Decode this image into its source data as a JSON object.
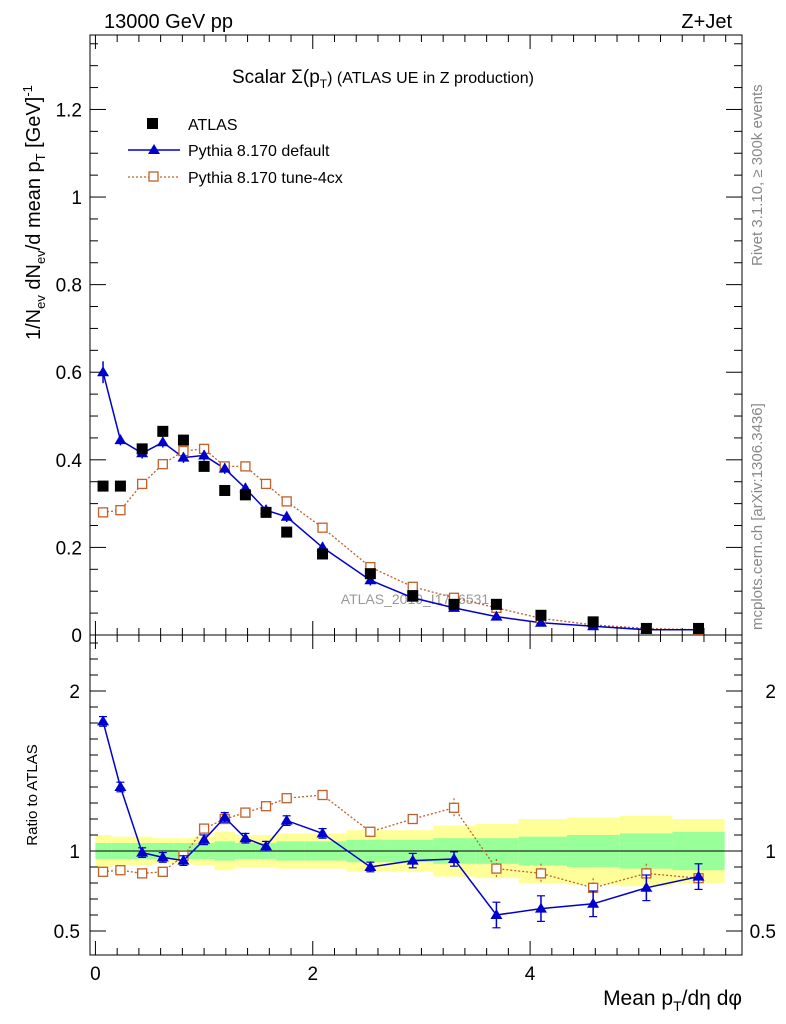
{
  "header": {
    "energy": "13000 GeV pp",
    "process": "Z+Jet",
    "side_rivet": "Rivet 3.1.10, ≥ 300k events",
    "side_site": "mcplots.cern.ch [arXiv:1306.3436]"
  },
  "chart_data": {
    "type": "line",
    "title_main": "Scalar Σ(p",
    "title_sub": "T",
    "title_rest": ") (ATLAS UE in Z production)",
    "watermark": "ATLAS_2019_I1736531",
    "ylabel_main": "1/N_ev dN_ev/d mean p_T [GeV]^-1",
    "ylabel_ratio": "Ratio to ATLAS",
    "xlabel": "Mean p_T/dη dφ",
    "xlim": [
      -0.05,
      5.95
    ],
    "ylim": [
      0,
      1.37
    ],
    "ylim_ratio": [
      0.35,
      2.35
    ],
    "x_ticks": [
      "0",
      "2",
      "4"
    ],
    "y_ticks": [
      "0",
      "0.2",
      "0.4",
      "0.6",
      "0.8",
      "1",
      "1.2"
    ],
    "y_ticks_ratio": [
      "0.5",
      "1",
      "2"
    ],
    "legend": [
      "ATLAS",
      "Pythia 8.170 default",
      "Pythia 8.170 tune-4cx"
    ],
    "x": [
      0.07,
      0.23,
      0.43,
      0.62,
      0.81,
      1.0,
      1.19,
      1.38,
      1.57,
      1.76,
      2.09,
      2.53,
      2.92,
      3.3,
      3.69,
      4.1,
      4.58,
      5.07,
      5.55
    ],
    "series": [
      {
        "name": "ATLAS",
        "values": [
          0.34,
          0.34,
          0.425,
          0.465,
          0.445,
          0.385,
          0.33,
          0.32,
          0.28,
          0.235,
          0.185,
          0.14,
          0.09,
          0.07,
          0.07,
          0.045,
          0.03,
          0.015,
          0.015
        ]
      },
      {
        "name": "Pythia 8.170 default",
        "values": [
          0.6,
          0.445,
          0.415,
          0.44,
          0.405,
          0.41,
          0.38,
          0.335,
          0.285,
          0.27,
          0.2,
          0.125,
          0.085,
          0.062,
          0.042,
          0.028,
          0.02,
          0.012,
          0.012
        ]
      },
      {
        "name": "Pythia 8.170 tune-4cx",
        "values": [
          0.28,
          0.285,
          0.345,
          0.39,
          0.42,
          0.425,
          0.385,
          0.385,
          0.345,
          0.305,
          0.245,
          0.155,
          0.11,
          0.085,
          0.062,
          0.038,
          0.023,
          0.015,
          0.012
        ]
      }
    ],
    "ratio_series": [
      {
        "name": "Pythia 8.170 default",
        "values": [
          1.81,
          1.4,
          0.99,
          0.96,
          0.94,
          1.07,
          1.21,
          1.08,
          1.03,
          1.19,
          1.11,
          0.9,
          0.94,
          0.95,
          0.6,
          0.64,
          0.67,
          0.77,
          0.84
        ]
      },
      {
        "name": "Pythia 8.170 tune-4cx",
        "values": [
          0.87,
          0.88,
          0.86,
          0.87,
          0.97,
          1.14,
          1.2,
          1.24,
          1.28,
          1.33,
          1.35,
          1.12,
          1.2,
          1.27,
          0.89,
          0.86,
          0.77,
          0.86,
          0.83
        ]
      }
    ],
    "ratio_band_green": [
      0.05,
      0.05,
      0.05,
      0.05,
      0.05,
      0.05,
      0.06,
      0.05,
      0.05,
      0.06,
      0.06,
      0.07,
      0.07,
      0.08,
      0.08,
      0.09,
      0.1,
      0.11,
      0.12
    ],
    "ratio_band_yellow": [
      0.1,
      0.09,
      0.09,
      0.08,
      0.08,
      0.09,
      0.12,
      0.1,
      0.1,
      0.11,
      0.11,
      0.13,
      0.13,
      0.16,
      0.17,
      0.2,
      0.21,
      0.22,
      0.2
    ]
  }
}
